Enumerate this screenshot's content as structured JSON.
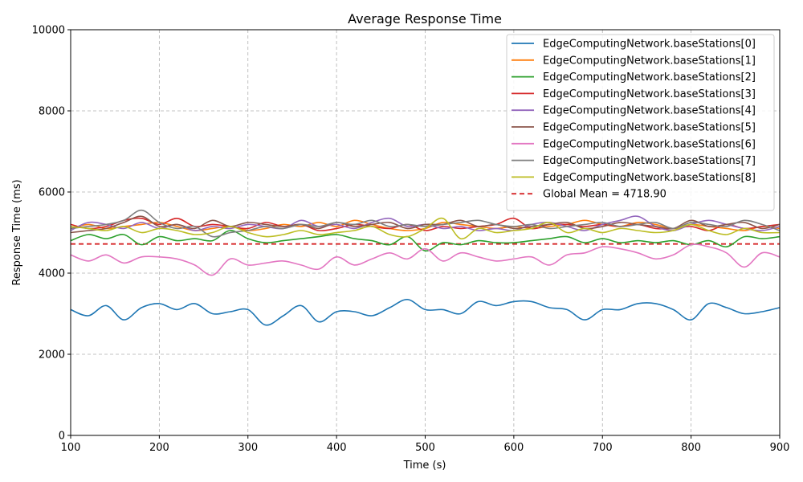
{
  "chart_data": {
    "type": "line",
    "title": "Average Response Time",
    "xlabel": "Time (s)",
    "ylabel": "Response Time (ms)",
    "xlim": [
      100,
      900
    ],
    "ylim": [
      0,
      10000
    ],
    "xticks": [
      100,
      200,
      300,
      400,
      500,
      600,
      700,
      800,
      900
    ],
    "yticks": [
      0,
      2000,
      4000,
      6000,
      8000,
      10000
    ],
    "grid": true,
    "legend_position": "top-right",
    "x": [
      100,
      120,
      140,
      160,
      180,
      200,
      220,
      240,
      260,
      280,
      300,
      320,
      340,
      360,
      380,
      400,
      420,
      440,
      460,
      480,
      500,
      520,
      540,
      560,
      580,
      600,
      620,
      640,
      660,
      680,
      700,
      720,
      740,
      760,
      780,
      800,
      820,
      840,
      860,
      880,
      900
    ],
    "series": [
      {
        "name": "EdgeComputingNetwork.baseStations[0]",
        "color": "#1f77b4",
        "values": [
          3100,
          2950,
          3200,
          2850,
          3150,
          3250,
          3100,
          3250,
          3000,
          3050,
          3100,
          2720,
          2950,
          3200,
          2800,
          3050,
          3050,
          2950,
          3150,
          3350,
          3100,
          3100,
          3000,
          3300,
          3200,
          3300,
          3300,
          3150,
          3100,
          2850,
          3100,
          3100,
          3250,
          3250,
          3100,
          2850,
          3250,
          3150,
          3000,
          3050,
          3150
        ]
      },
      {
        "name": "EdgeComputingNetwork.baseStations[1]",
        "color": "#ff7f0e",
        "values": [
          5100,
          5200,
          5100,
          5150,
          5200,
          5250,
          5150,
          5050,
          5100,
          5150,
          5050,
          5100,
          5200,
          5150,
          5250,
          5150,
          5300,
          5200,
          5100,
          5050,
          5100,
          5250,
          5200,
          5150,
          5100,
          5150,
          5100,
          5150,
          5200,
          5300,
          5200,
          5150,
          5250,
          5200,
          5100,
          5200,
          5150,
          5100,
          5050,
          5150,
          5100
        ]
      },
      {
        "name": "EdgeComputingNetwork.baseStations[2]",
        "color": "#2ca02c",
        "values": [
          4800,
          4950,
          4850,
          4950,
          4700,
          4900,
          4800,
          4850,
          4800,
          5050,
          4850,
          4750,
          4800,
          4850,
          4900,
          4950,
          4850,
          4800,
          4700,
          4900,
          4550,
          4750,
          4700,
          4800,
          4750,
          4750,
          4800,
          4850,
          4900,
          4750,
          4850,
          4750,
          4800,
          4750,
          4800,
          4700,
          4800,
          4650,
          4900,
          4850,
          4900
        ]
      },
      {
        "name": "EdgeComputingNetwork.baseStations[3]",
        "color": "#d62728",
        "values": [
          5200,
          5100,
          5150,
          5300,
          5350,
          5200,
          5350,
          5150,
          5200,
          5150,
          5100,
          5250,
          5150,
          5200,
          5050,
          5100,
          5200,
          5150,
          5100,
          5200,
          5050,
          5150,
          5100,
          5150,
          5200,
          5350,
          5100,
          5200,
          5200,
          5150,
          5200,
          5150,
          5200,
          5100,
          5100,
          5150,
          5050,
          5200,
          5100,
          5150,
          5200
        ]
      },
      {
        "name": "EdgeComputingNetwork.baseStations[4]",
        "color": "#9467bd",
        "values": [
          5050,
          5250,
          5200,
          5100,
          5250,
          5100,
          5200,
          5050,
          5150,
          5100,
          5200,
          5150,
          5100,
          5300,
          5150,
          5200,
          5100,
          5250,
          5350,
          5150,
          5200,
          5100,
          5150,
          5050,
          5100,
          5050,
          5200,
          5250,
          5150,
          5050,
          5200,
          5300,
          5400,
          5150,
          5050,
          5200,
          5300,
          5200,
          5100,
          5050,
          5150
        ]
      },
      {
        "name": "EdgeComputingNetwork.baseStations[5]",
        "color": "#8c564b",
        "values": [
          5000,
          5050,
          5100,
          5250,
          5400,
          5150,
          5200,
          5100,
          5300,
          5150,
          5250,
          5200,
          5150,
          5200,
          5100,
          5250,
          5150,
          5200,
          5250,
          5100,
          5200,
          5200,
          5300,
          5150,
          5200,
          5100,
          5150,
          5200,
          5250,
          5100,
          5150,
          5250,
          5200,
          5150,
          5100,
          5300,
          5150,
          5200,
          5250,
          5100,
          5200
        ]
      },
      {
        "name": "EdgeComputingNetwork.baseStations[6]",
        "color": "#e377c2",
        "values": [
          4450,
          4300,
          4450,
          4250,
          4400,
          4400,
          4350,
          4200,
          3950,
          4350,
          4200,
          4250,
          4300,
          4200,
          4100,
          4400,
          4200,
          4350,
          4500,
          4350,
          4600,
          4300,
          4500,
          4400,
          4300,
          4350,
          4400,
          4200,
          4450,
          4500,
          4650,
          4600,
          4500,
          4350,
          4450,
          4700,
          4650,
          4500,
          4150,
          4500,
          4400
        ]
      },
      {
        "name": "EdgeComputingNetwork.baseStations[7]",
        "color": "#7f7f7f",
        "values": [
          5100,
          5150,
          5200,
          5300,
          5550,
          5250,
          5100,
          5150,
          4900,
          5000,
          5050,
          5150,
          5100,
          5200,
          5150,
          5250,
          5200,
          5300,
          5150,
          5200,
          5150,
          5200,
          5250,
          5300,
          5200,
          5150,
          5200,
          5100,
          5150,
          5200,
          5250,
          5150,
          5200,
          5250,
          5100,
          5250,
          5200,
          5150,
          5300,
          5200,
          5050
        ]
      },
      {
        "name": "EdgeComputingNetwork.baseStations[8]",
        "color": "#bcbd22",
        "values": [
          5150,
          5100,
          5050,
          5150,
          5000,
          5100,
          5050,
          4950,
          5000,
          5150,
          5000,
          4900,
          4950,
          5050,
          4950,
          5000,
          5050,
          5150,
          4950,
          4900,
          5100,
          5350,
          4850,
          5100,
          5000,
          5050,
          5100,
          5250,
          5000,
          5100,
          5000,
          5100,
          5050,
          5000,
          5050,
          5200,
          5050,
          4950,
          5100,
          5000,
          5000
        ]
      }
    ],
    "reference_line": {
      "name": "Global Mean = 4718.90",
      "value": 4718.9,
      "color": "#d62728",
      "style": "dashed"
    }
  }
}
